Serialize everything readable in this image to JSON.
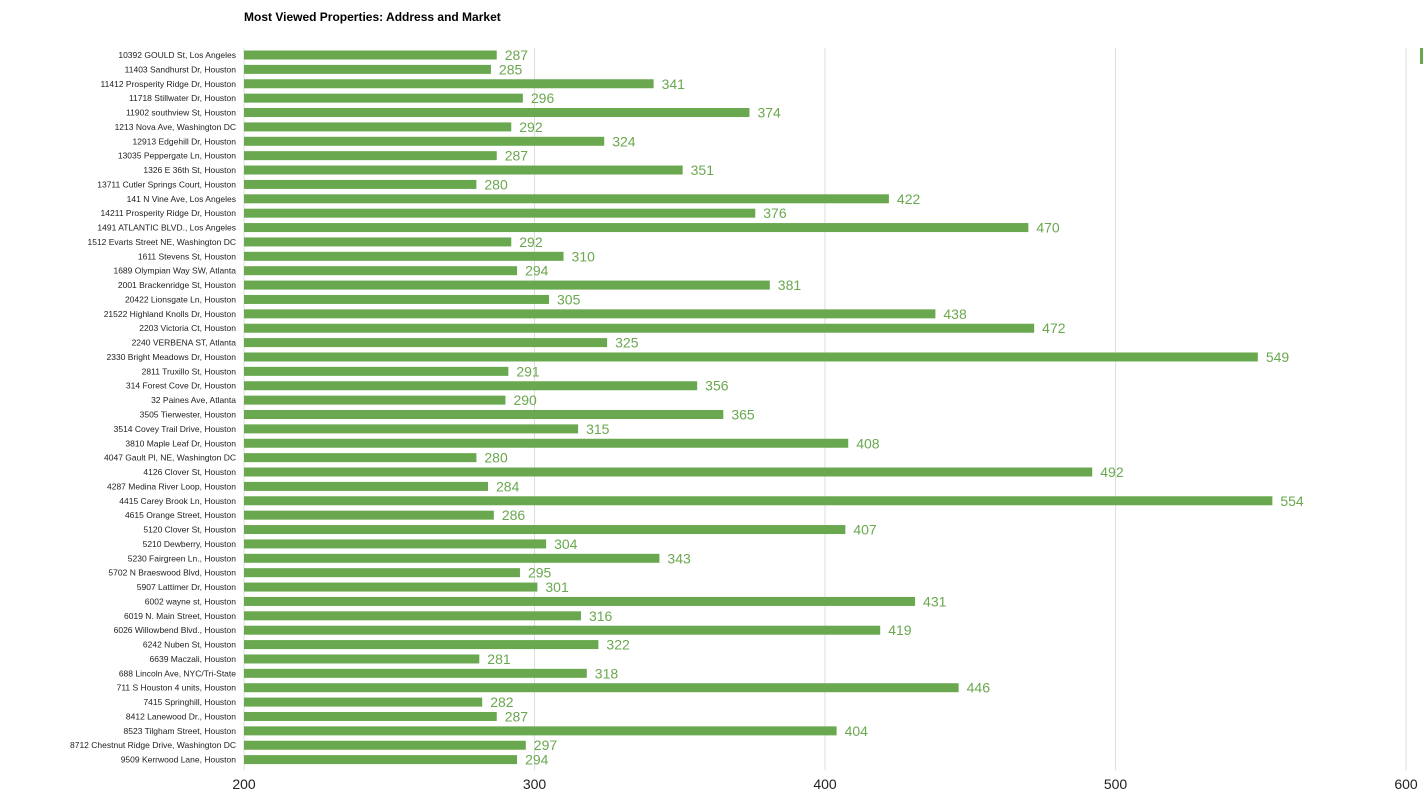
{
  "colors": {
    "bar": "#6aa84f",
    "grid": "#dddddd",
    "label": "#6aa84f"
  },
  "chart_data": {
    "type": "bar",
    "orientation": "horizontal",
    "title": "Most Viewed Properties: Address and Market",
    "xlim": [
      200,
      600
    ],
    "x_ticks": [
      200,
      300,
      400,
      500,
      600
    ],
    "grid": true,
    "legend": "top-right",
    "categories": [
      "10392 GOULD St, Los Angeles",
      "11403 Sandhurst Dr, Houston",
      "11412 Prosperity Ridge Dr, Houston",
      "11718 Stillwater Dr, Houston",
      "11902 southview St, Houston",
      "1213 Nova Ave, Washington DC",
      "12913 Edgehill Dr, Houston",
      "13035 Peppergate Ln, Houston",
      "1326 E 36th St, Houston",
      "13711 Cutler Springs Court, Houston",
      "141 N Vine Ave, Los Angeles",
      "14211 Prosperity Ridge Dr, Houston",
      "1491 ATLANTIC BLVD., Los Angeles",
      "1512 Evarts Street NE, Washington DC",
      "1611 Stevens St, Houston",
      "1689 Olympian Way SW, Atlanta",
      "2001 Brackenridge St, Houston",
      "20422 Lionsgate Ln, Houston",
      "21522 Highland Knolls Dr, Houston",
      "2203 Victoria Ct, Houston",
      "2240 VERBENA ST, Atlanta",
      "2330 Bright Meadows Dr, Houston",
      "2811 Truxillo St, Houston",
      "314 Forest Cove Dr, Houston",
      "32 Paines Ave, Atlanta",
      "3505 Tierwester, Houston",
      "3514 Covey Trail Drive, Houston",
      "3810 Maple Leaf Dr, Houston",
      "4047 Gault Pl, NE, Washington DC",
      "4126 Clover St, Houston",
      "4287 Medina River Loop, Houston",
      "4415 Carey Brook Ln, Houston",
      "4615 Orange Street, Houston",
      "5120 Clover St, Houston",
      "5210 Dewberry, Houston",
      "5230 Fairgreen Ln., Houston",
      "5702 N Braeswood Blvd, Houston",
      "5907 Lattimer Dr, Houston",
      "6002 wayne st, Houston",
      "6019 N. Main Street, Houston",
      "6026 Willowbend Blvd., Houston",
      "6242 Nuben St, Houston",
      "6639 Maczali, Houston",
      "688 Lincoln Ave, NYC/Tri-State",
      "711 S Houston 4 units, Houston",
      "7415 Springhill, Houston",
      "8412 Lanewood Dr., Houston",
      "8523 Tilgham Street, Houston",
      "8712 Chestnut Ridge Drive, Washington DC",
      "9509 Kerrwood Lane, Houston"
    ],
    "values": [
      287,
      285,
      341,
      296,
      374,
      292,
      324,
      287,
      351,
      280,
      422,
      376,
      470,
      292,
      310,
      294,
      381,
      305,
      438,
      472,
      325,
      549,
      291,
      356,
      290,
      365,
      315,
      408,
      280,
      492,
      284,
      554,
      286,
      407,
      304,
      343,
      295,
      301,
      431,
      316,
      419,
      322,
      281,
      318,
      446,
      282,
      287,
      404,
      297,
      294
    ]
  }
}
